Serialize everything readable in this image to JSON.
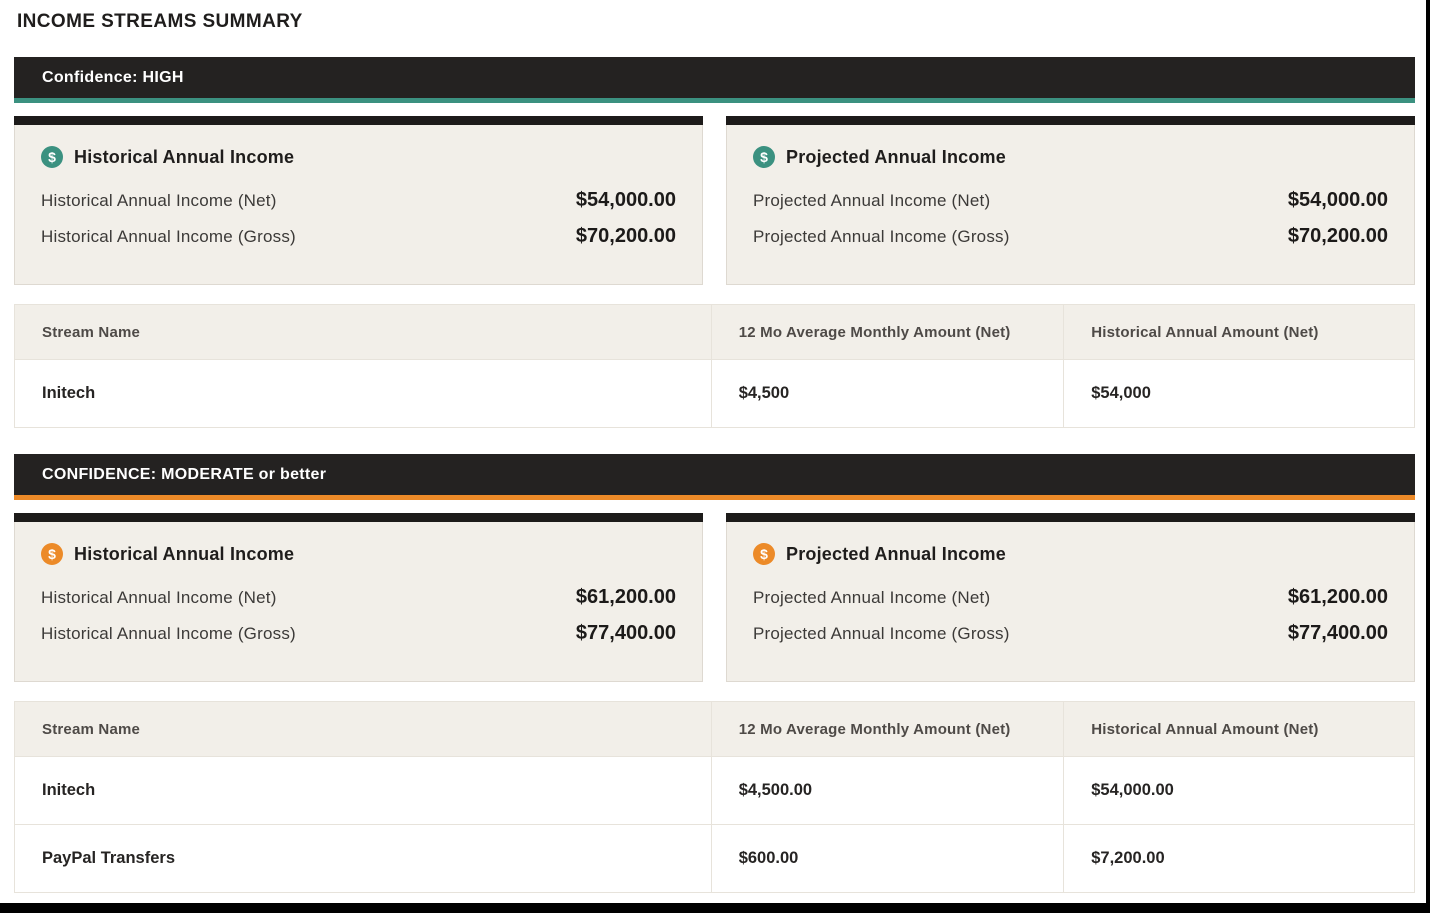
{
  "page": {
    "title": "INCOME STREAMS SUMMARY"
  },
  "icons": {
    "dollar_glyph": "$"
  },
  "colors": {
    "header_bar_background": "#242221",
    "high_accent_teal": "#3b9180",
    "moderate_accent_orange": "#ec8a28",
    "card_background": "#f2efe9",
    "table_border": "#e7e3db"
  },
  "sections": [
    {
      "header": "Confidence: HIGH",
      "accent": "#3b9180",
      "cards": [
        {
          "title": "Historical Annual Income",
          "rows": [
            {
              "label": "Historical Annual Income (Net)",
              "value": "$54,000.00"
            },
            {
              "label": "Historical Annual Income (Gross)",
              "value": "$70,200.00"
            }
          ]
        },
        {
          "title": "Projected Annual Income",
          "rows": [
            {
              "label": "Projected Annual Income (Net)",
              "value": "$54,000.00"
            },
            {
              "label": "Projected Annual Income (Gross)",
              "value": "$70,200.00"
            }
          ]
        }
      ],
      "table": {
        "headers": [
          "Stream Name",
          "12 Mo Average Monthly Amount (Net)",
          "Historical Annual Amount (Net)"
        ],
        "rows": [
          {
            "stream": "Initech",
            "monthly": "$4,500",
            "annual": "$54,000"
          }
        ]
      }
    },
    {
      "header": "CONFIDENCE: MODERATE or better",
      "accent": "#ec8a28",
      "cards": [
        {
          "title": "Historical Annual Income",
          "rows": [
            {
              "label": "Historical Annual Income (Net)",
              "value": "$61,200.00"
            },
            {
              "label": "Historical Annual Income (Gross)",
              "value": "$77,400.00"
            }
          ]
        },
        {
          "title": "Projected Annual Income",
          "rows": [
            {
              "label": "Projected Annual Income (Net)",
              "value": "$61,200.00"
            },
            {
              "label": "Projected Annual Income (Gross)",
              "value": "$77,400.00"
            }
          ]
        }
      ],
      "table": {
        "headers": [
          "Stream Name",
          "12 Mo Average Monthly Amount (Net)",
          "Historical Annual Amount (Net)"
        ],
        "rows": [
          {
            "stream": "Initech",
            "monthly": "$4,500.00",
            "annual": "$54,000.00"
          },
          {
            "stream": "PayPal Transfers",
            "monthly": "$600.00",
            "annual": "$7,200.00"
          }
        ]
      }
    }
  ]
}
